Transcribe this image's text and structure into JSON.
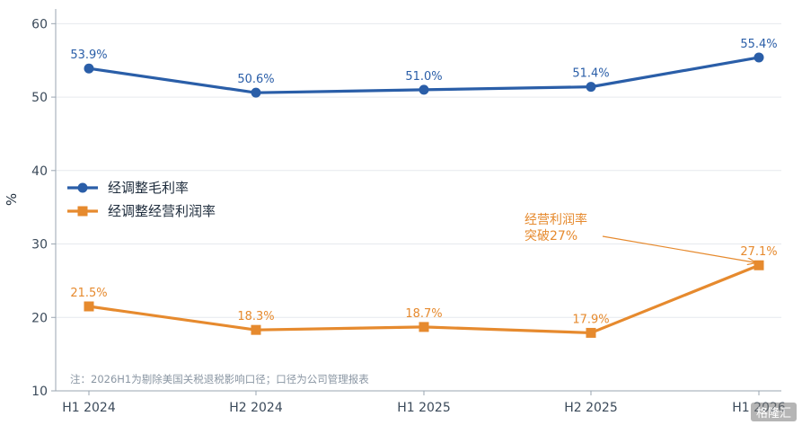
{
  "chart_data": {
    "type": "line",
    "categories": [
      "H1 2024",
      "H2 2024",
      "H1 2025",
      "H2 2025",
      "H1 2026"
    ],
    "ylabel": "%",
    "ylim": [
      10,
      62
    ],
    "yticks": [
      10,
      20,
      30,
      40,
      50,
      60
    ],
    "grid": "horizontal",
    "legend_position": "left-middle",
    "series": [
      {
        "name": "经调整毛利率",
        "color": "#2a5ea8",
        "marker": "circle",
        "values": [
          53.9,
          50.6,
          51.0,
          51.4,
          55.4
        ],
        "labels": [
          "53.9%",
          "50.6%",
          "51.0%",
          "51.4%",
          "55.4%"
        ]
      },
      {
        "name": "经调整经营利润率",
        "color": "#e68a2e",
        "marker": "square",
        "values": [
          21.5,
          18.3,
          18.7,
          17.9,
          27.1
        ],
        "labels": [
          "21.5%",
          "18.3%",
          "18.7%",
          "17.9%",
          "27.1%"
        ]
      }
    ],
    "annotation": {
      "lines": [
        "经营利润率",
        "突破27%"
      ],
      "target_series": 1,
      "target_index": 4
    },
    "note": "注：2026H1为剔除美国关税退税影响口径；口径为公司管理报表"
  },
  "watermark": "格隆汇"
}
